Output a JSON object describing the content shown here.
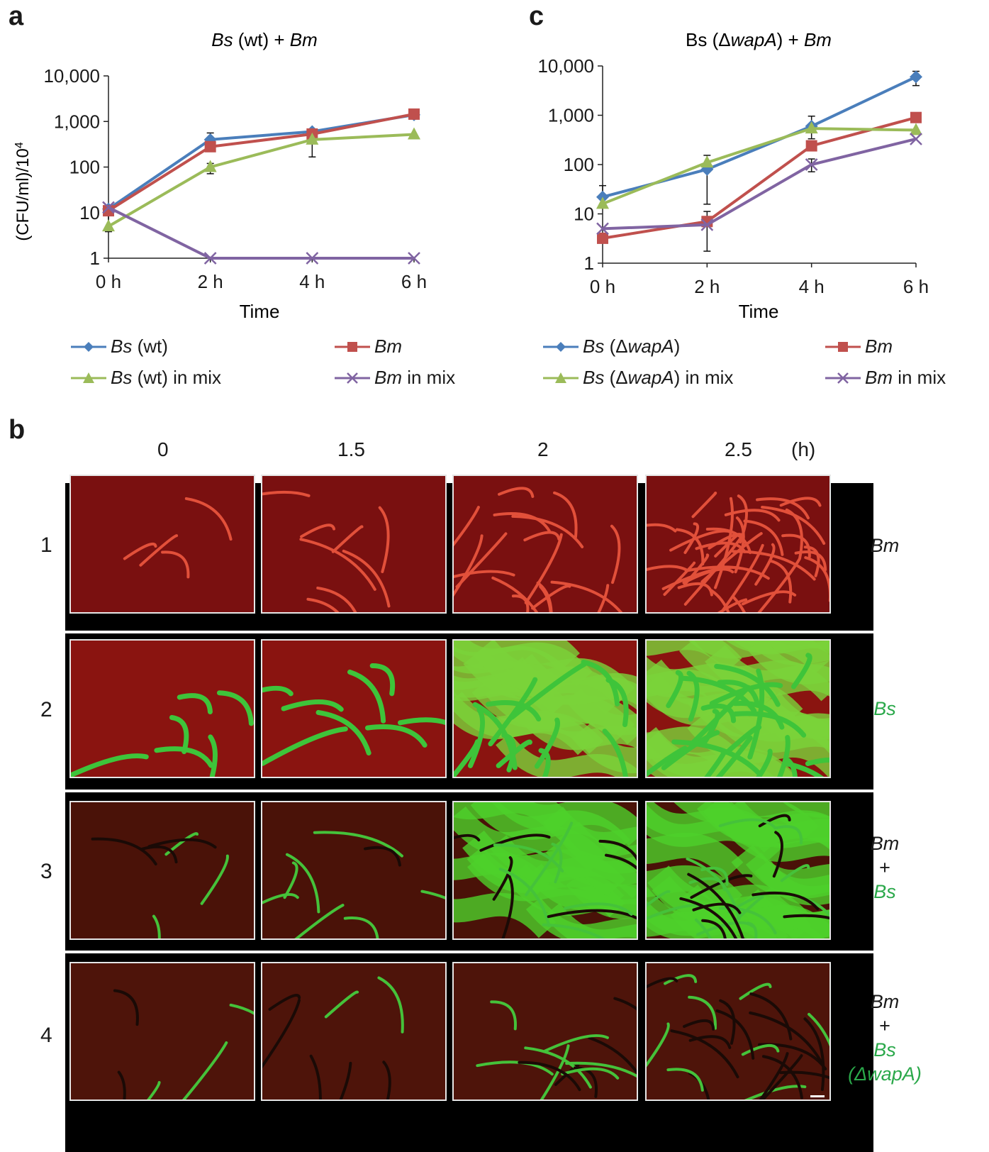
{
  "panels": {
    "a": "a",
    "b": "b",
    "c": "c"
  },
  "chart_data": [
    {
      "type": "line",
      "title": "Bs (wt) + Bm",
      "title_italic": [
        "Bs",
        "Bm"
      ],
      "xlabel": "Time",
      "ylabel": "(CFU/ml)/10",
      "ylabel_exp": "4",
      "yscale": "log",
      "ylim": [
        1,
        10000
      ],
      "yticks": [
        "1",
        "10",
        "100",
        "1,000",
        "10,000"
      ],
      "categories": [
        "0 h",
        "2 h",
        "4 h",
        "6 h"
      ],
      "series": [
        {
          "name": "Bs (wt)",
          "color": "#4a7ebb",
          "marker": "diamond",
          "values": [
            12,
            400,
            600,
            1400
          ]
        },
        {
          "name": "Bm",
          "color": "#c0504d",
          "marker": "square",
          "values": [
            11,
            280,
            530,
            1450
          ]
        },
        {
          "name": "Bs (wt) in mix",
          "color": "#9bbb59",
          "marker": "triangle",
          "values": [
            5,
            100,
            400,
            520
          ]
        },
        {
          "name": "Bm in mix",
          "color": "#8064a2",
          "marker": "x",
          "values": [
            13,
            1,
            1,
            1
          ]
        }
      ]
    },
    {
      "type": "line",
      "title": "Bs (ΔwapA) + Bm",
      "xlabel": "Time",
      "yscale": "log",
      "ylim": [
        1,
        10000
      ],
      "yticks": [
        "1",
        "10",
        "100",
        "1,000",
        "10,000"
      ],
      "categories": [
        "0 h",
        "2 h",
        "4 h",
        "6 h"
      ],
      "series": [
        {
          "name": "Bs (ΔwapA)",
          "color": "#4a7ebb",
          "marker": "diamond",
          "values": [
            22,
            80,
            600,
            6000
          ]
        },
        {
          "name": "Bm",
          "color": "#c0504d",
          "marker": "square",
          "values": [
            3.2,
            7,
            240,
            900
          ]
        },
        {
          "name": "Bs (ΔwapA) in mix",
          "color": "#9bbb59",
          "marker": "triangle",
          "values": [
            16,
            110,
            540,
            500
          ]
        },
        {
          "name": "Bm in mix",
          "color": "#8064a2",
          "marker": "x",
          "values": [
            5,
            6,
            100,
            330
          ]
        }
      ]
    }
  ],
  "legend_a": [
    {
      "pre": "Bs",
      "rest": " (wt)"
    },
    {
      "pre": "Bm",
      "rest": ""
    },
    {
      "pre": "Bs",
      "rest": " (wt) in mix"
    },
    {
      "pre": "Bm",
      "rest": " in mix"
    }
  ],
  "legend_c": [
    {
      "pre": "Bs",
      "rest": " (Δ",
      "it2": "wapA",
      "rest2": ")"
    },
    {
      "pre": "Bm",
      "rest": ""
    },
    {
      "pre": "Bs",
      "rest": " (Δ",
      "it2": "wapA",
      "rest2": ") in mix"
    },
    {
      "pre": "Bm",
      "rest": " in mix"
    }
  ],
  "micro": {
    "times": [
      "0",
      "1.5",
      "2",
      "2.5"
    ],
    "unit": "(h)",
    "rows": [
      "1",
      "2",
      "3",
      "4"
    ],
    "row_labels": {
      "r1": "Bm",
      "r2": "Bs",
      "r3a": "Bm",
      "r3b": "+",
      "r3c": "Bs",
      "r4a": "Bm",
      "r4b": "+",
      "r4c": "Bs",
      "r4d": "(ΔwapA)"
    }
  }
}
